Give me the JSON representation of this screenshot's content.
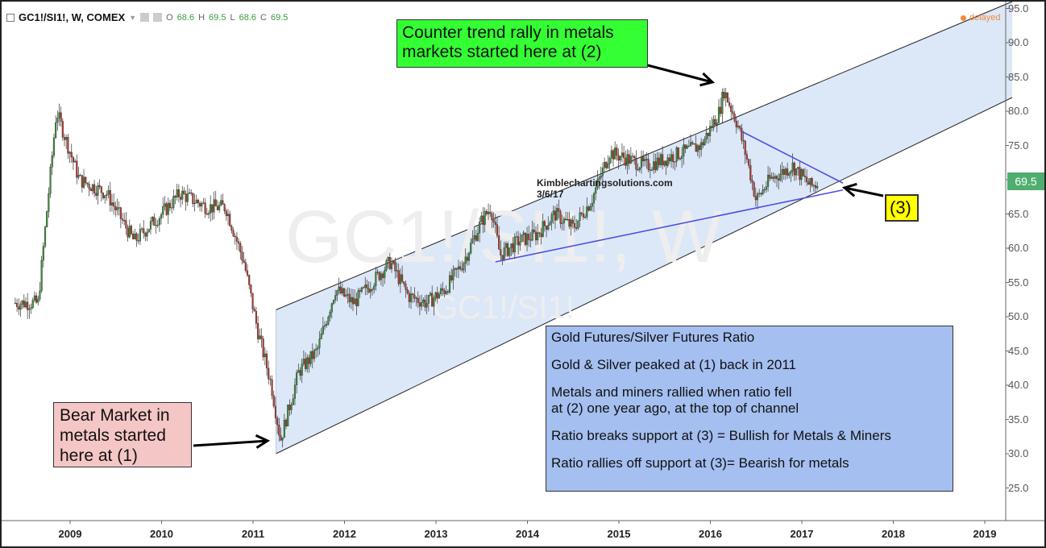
{
  "header": {
    "symbol_text": "GC1!/SI1!, W, COMEX",
    "ohlc": [
      {
        "label": "O",
        "value": "68.6"
      },
      {
        "label": "H",
        "value": "69.5"
      },
      {
        "label": "L",
        "value": "68.6"
      },
      {
        "label": "C",
        "value": "69.5"
      }
    ],
    "delayed": "delayed"
  },
  "watermark": {
    "large": "GC1!/SI1!, W",
    "small": "GC1!/SI1!"
  },
  "credit": {
    "site": "Kimblechartingsolutions.com",
    "date": "3/6/17"
  },
  "annotations": {
    "green": [
      "Counter trend rally in metals",
      "markets started here at (2)"
    ],
    "pink": [
      "Bear Market in",
      "metals started",
      "here at (1)"
    ],
    "yellow": "(3)",
    "blue": [
      "Gold Futures/Silver Futures Ratio",
      "Gold & Silver peaked at (1) back in 2011",
      "Metals and miners rallied when ratio fell",
      "at (2) one year ago, at the top of channel",
      "Ratio breaks support at (3) = Bullish for Metals & Miners",
      "Ratio rallies off support at (3)= Bearish for metals"
    ]
  },
  "colors": {
    "up_candle": "#3c8a3c",
    "down_candle": "#b03a2e",
    "channel_fill": "#dce8f8",
    "trendline": "#5050e0",
    "price_badge": "#4fae6e"
  },
  "chart_data": {
    "type": "candlestick",
    "current_price": "69.5",
    "ylim": [
      25,
      95
    ],
    "y_ticks": [
      "25.0",
      "30.0",
      "35.0",
      "40.0",
      "45.0",
      "50.0",
      "55.0",
      "60.0",
      "65.0",
      "70.0",
      "75.0",
      "80.0",
      "85.0",
      "90.0",
      "95.0"
    ],
    "x_ticks": [
      "2009",
      "2010",
      "2011",
      "2012",
      "2013",
      "2014",
      "2015",
      "2016",
      "2017",
      "2018",
      "2019"
    ],
    "series": [
      {
        "values": [
          {
            "x": "2008.40",
            "y": 52
          },
          {
            "x": "2008.65",
            "y": 52
          },
          {
            "x": "2008.85",
            "y": 80
          },
          {
            "x": "2009.10",
            "y": 70
          },
          {
            "x": "2009.40",
            "y": 68
          },
          {
            "x": "2009.70",
            "y": 61
          },
          {
            "x": "2010.00",
            "y": 65
          },
          {
            "x": "2010.20",
            "y": 68
          },
          {
            "x": "2010.50",
            "y": 66
          },
          {
            "x": "2010.70",
            "y": 66
          },
          {
            "x": "2010.90",
            "y": 58
          },
          {
            "x": "2011.05",
            "y": 48
          },
          {
            "x": "2011.20",
            "y": 40
          },
          {
            "x": "2011.30",
            "y": 32
          },
          {
            "x": "2011.50",
            "y": 42
          },
          {
            "x": "2011.70",
            "y": 45
          },
          {
            "x": "2011.90",
            "y": 54
          },
          {
            "x": "2012.10",
            "y": 52
          },
          {
            "x": "2012.30",
            "y": 55
          },
          {
            "x": "2012.50",
            "y": 58
          },
          {
            "x": "2012.70",
            "y": 53
          },
          {
            "x": "2012.90",
            "y": 52
          },
          {
            "x": "2013.10",
            "y": 54
          },
          {
            "x": "2013.30",
            "y": 58
          },
          {
            "x": "2013.50",
            "y": 64
          },
          {
            "x": "2013.60",
            "y": 66
          },
          {
            "x": "2013.70",
            "y": 59
          },
          {
            "x": "2013.90",
            "y": 61
          },
          {
            "x": "2014.10",
            "y": 62
          },
          {
            "x": "2014.30",
            "y": 65
          },
          {
            "x": "2014.50",
            "y": 63
          },
          {
            "x": "2014.70",
            "y": 67
          },
          {
            "x": "2014.90",
            "y": 74
          },
          {
            "x": "2015.10",
            "y": 73
          },
          {
            "x": "2015.30",
            "y": 72
          },
          {
            "x": "2015.50",
            "y": 73
          },
          {
            "x": "2015.70",
            "y": 74
          },
          {
            "x": "2015.90",
            "y": 75
          },
          {
            "x": "2016.10",
            "y": 80
          },
          {
            "x": "2016.15",
            "y": 83
          },
          {
            "x": "2016.30",
            "y": 78
          },
          {
            "x": "2016.40",
            "y": 73
          },
          {
            "x": "2016.50",
            "y": 67
          },
          {
            "x": "2016.65",
            "y": 70
          },
          {
            "x": "2016.90",
            "y": 72
          },
          {
            "x": "2017.10",
            "y": 69
          },
          {
            "x": "2017.18",
            "y": 69.5
          }
        ]
      }
    ],
    "channel": {
      "upper": [
        {
          "x": "2011.25",
          "y": 51
        },
        {
          "x": "2019.30",
          "y": 96
        }
      ],
      "lower": [
        {
          "x": "2011.25",
          "y": 30
        },
        {
          "x": "2019.30",
          "y": 82
        }
      ]
    },
    "trendlines": [
      {
        "from": {
          "x": "2013.65",
          "y": 58
        },
        "to": {
          "x": "2017.45",
          "y": 68.5
        }
      },
      {
        "from": {
          "x": "2016.35",
          "y": 77
        },
        "to": {
          "x": "2017.45",
          "y": 69.5
        }
      }
    ]
  }
}
